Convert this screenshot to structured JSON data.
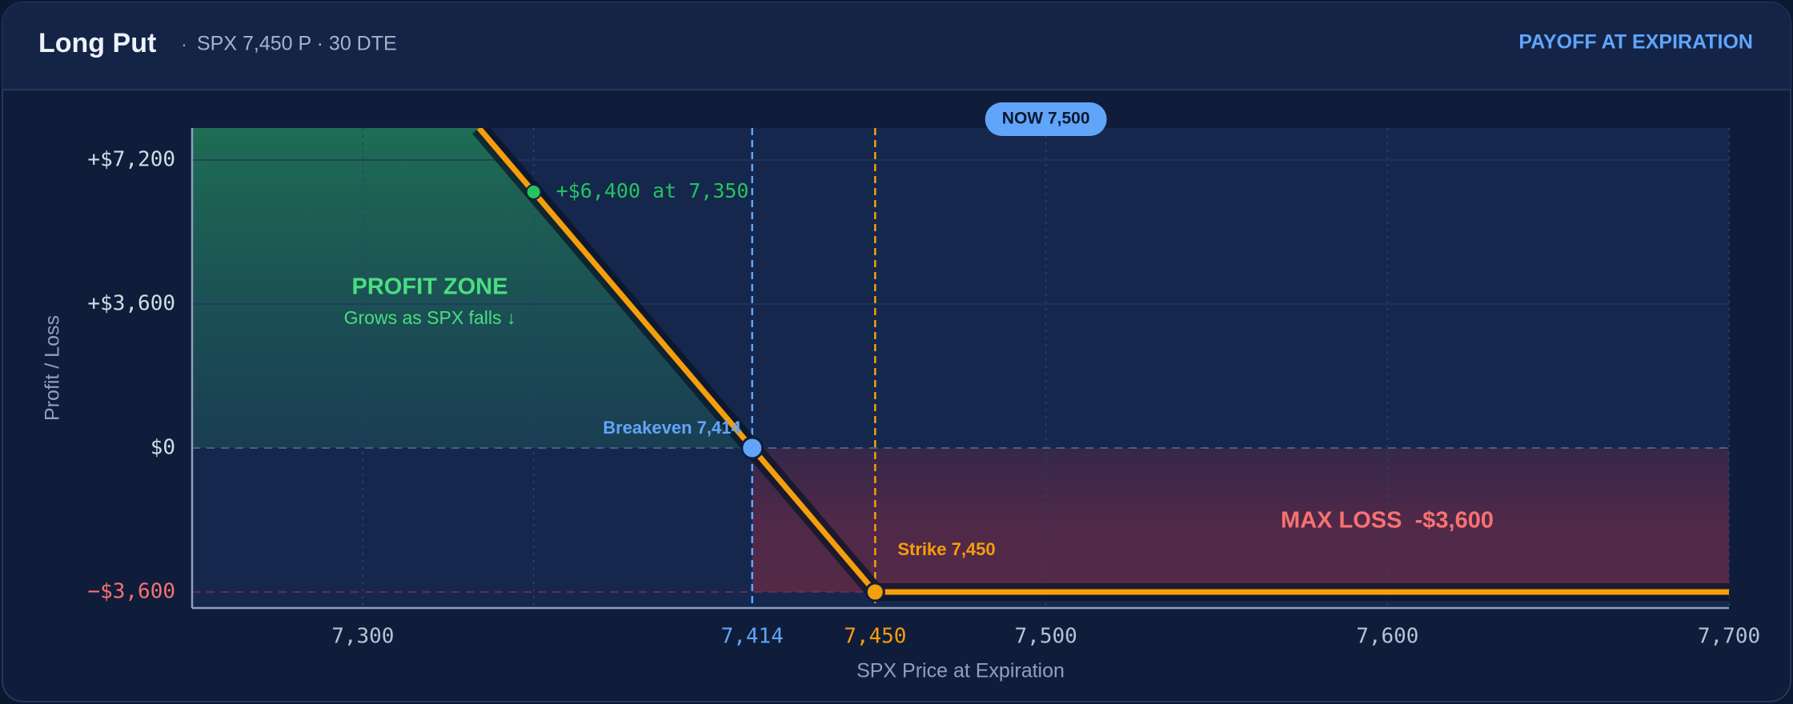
{
  "chart_data": {
    "type": "line",
    "title": "Long Put",
    "subtitle": "SPX 7,450 P · 30 DTE",
    "header_right": "PAYOFF AT EXPIRATION",
    "xlabel": "SPX Price at Expiration",
    "ylabel": "Profit / Loss",
    "xlim": [
      7250,
      7700
    ],
    "ylim": [
      -4000,
      8000
    ],
    "xticks": [
      {
        "value": 7300,
        "label": "7,300"
      },
      {
        "value": 7500,
        "label": "7,500"
      },
      {
        "value": 7600,
        "label": "7,600"
      },
      {
        "value": 7700,
        "label": "7,700"
      }
    ],
    "yticks": [
      {
        "value": -3600,
        "label": "−$3,600"
      },
      {
        "value": 0,
        "label": "$0"
      },
      {
        "value": 3600,
        "label": "+$3,600"
      },
      {
        "value": 7200,
        "label": "+$7,200"
      }
    ],
    "grid": true,
    "series": [
      {
        "color": "#f59e0b",
        "x": [
          7334,
          7450,
          7700
        ],
        "values": [
          8000,
          -3600,
          -3600
        ]
      }
    ],
    "markers": [
      {
        "x": {
          "value": 7414,
          "label": "7,414"
        },
        "y": 0,
        "label": "Breakeven 7,414",
        "color": "#60a5fa"
      },
      {
        "x": {
          "value": 7450,
          "label": "7,450"
        },
        "y": -3600,
        "label": "Strike 7,450",
        "color": "#f59e0b"
      }
    ],
    "annotation": {
      "x": 7350,
      "y": 6400,
      "label": "+$6,400 at 7,350",
      "color": "#22c55e"
    },
    "now": {
      "value": 7500,
      "label": "NOW 7,500"
    },
    "profit_zone": {
      "title": "PROFIT ZONE",
      "subtitle": "Grows as SPX falls ↓",
      "color": "#4ade80"
    },
    "loss_zone": {
      "label": "MAX LOSS  -$3,600",
      "value": -3600,
      "color": "#f87171"
    }
  }
}
